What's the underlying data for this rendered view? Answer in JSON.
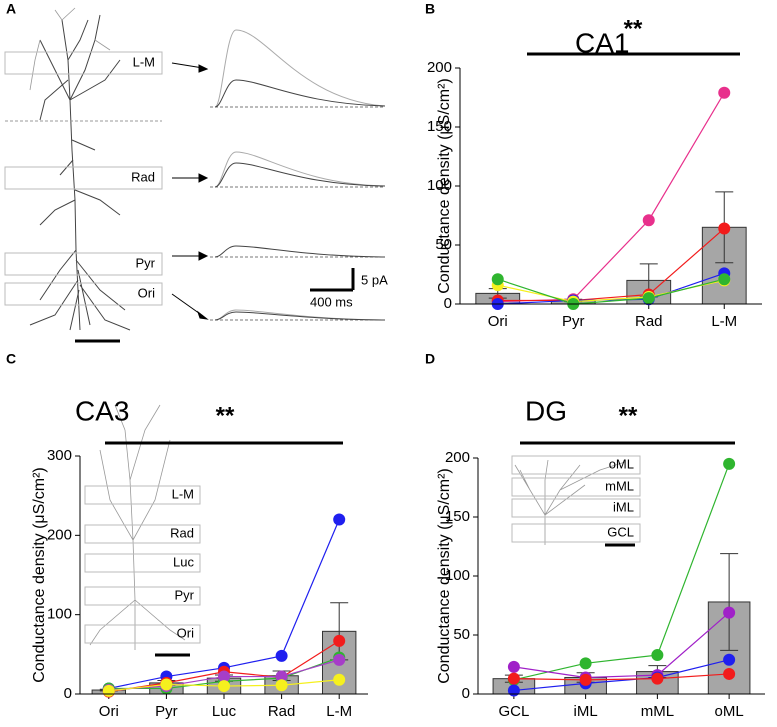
{
  "panel_a": {
    "label": "A",
    "layer_labels": [
      "L-M",
      "Rad",
      "Pyr",
      "Ori"
    ],
    "scale_current": "5 pA",
    "scale_time": "400 ms"
  },
  "chart_data": [
    {
      "type": "bar",
      "panel_label": "B",
      "title": "CA1",
      "annotation": "**",
      "ylabel": "Conductance density (μS/cm²)",
      "categories": [
        "Ori",
        "Pyr",
        "Rad",
        "L-M"
      ],
      "values": [
        9,
        3,
        20,
        65
      ],
      "errors": [
        4,
        1,
        14,
        30
      ],
      "color": "#a6a6a6",
      "series": [
        {
          "color": "#e8308c",
          "values": [
            2,
            4,
            71,
            179
          ]
        },
        {
          "color": "#f21c1c",
          "values": [
            3,
            3,
            8,
            64
          ]
        },
        {
          "color": "#1f1fef",
          "values": [
            0,
            3,
            4,
            26
          ]
        },
        {
          "color": "#f5f01e",
          "values": [
            16,
            2,
            6,
            20
          ]
        },
        {
          "color": "#2fb52f",
          "values": [
            21,
            0,
            5,
            21
          ]
        }
      ],
      "ylim": [
        0,
        200
      ],
      "yticks": [
        0,
        50,
        100,
        150,
        200
      ]
    },
    {
      "type": "bar",
      "panel_label": "C",
      "title": "CA3",
      "annotation": "**",
      "ylabel": "Conductance density (μS/cm²)",
      "categories": [
        "Ori",
        "Pyr",
        "Luc",
        "Rad",
        "L-M"
      ],
      "values": [
        5,
        14,
        20,
        23,
        79
      ],
      "errors": [
        1,
        3,
        4,
        6,
        36
      ],
      "color": "#a6a6a6",
      "series": [
        {
          "color": "#1f1fef",
          "values": [
            7,
            22,
            33,
            48,
            220
          ]
        },
        {
          "color": "#f21c1c",
          "values": [
            3,
            14,
            28,
            21,
            67
          ]
        },
        {
          "color": "#2fb52f",
          "values": [
            7,
            7,
            16,
            20,
            46
          ]
        },
        {
          "color": "#a63ec8",
          "values": [
            5,
            10,
            22,
            22,
            43
          ]
        },
        {
          "color": "#f5f01e",
          "values": [
            4,
            12,
            10,
            11,
            18
          ]
        }
      ],
      "ylim": [
        0,
        300
      ],
      "yticks": [
        0,
        100,
        200,
        300
      ],
      "inset_labels": [
        "L-M",
        "Rad",
        "Luc",
        "Pyr",
        "Ori"
      ]
    },
    {
      "type": "bar",
      "panel_label": "D",
      "title": "DG",
      "annotation": "**",
      "ylabel": "Conductance density (μS/cm²)",
      "categories": [
        "GCL",
        "iML",
        "mML",
        "oML"
      ],
      "values": [
        13,
        14,
        19,
        78
      ],
      "errors": [
        3,
        4,
        5,
        41
      ],
      "color": "#a6a6a6",
      "series": [
        {
          "color": "#2fb52f",
          "values": [
            12,
            26,
            33,
            195
          ]
        },
        {
          "color": "#a020c8",
          "values": [
            23,
            14,
            16,
            69
          ]
        },
        {
          "color": "#1f1fef",
          "values": [
            3,
            9,
            14,
            29
          ]
        },
        {
          "color": "#f21c1c",
          "values": [
            13,
            12,
            13,
            17
          ]
        }
      ],
      "ylim": [
        0,
        200
      ],
      "yticks": [
        0,
        50,
        100,
        150,
        200
      ],
      "inset_labels": [
        "oML",
        "mML",
        "iML",
        "GCL"
      ]
    }
  ]
}
